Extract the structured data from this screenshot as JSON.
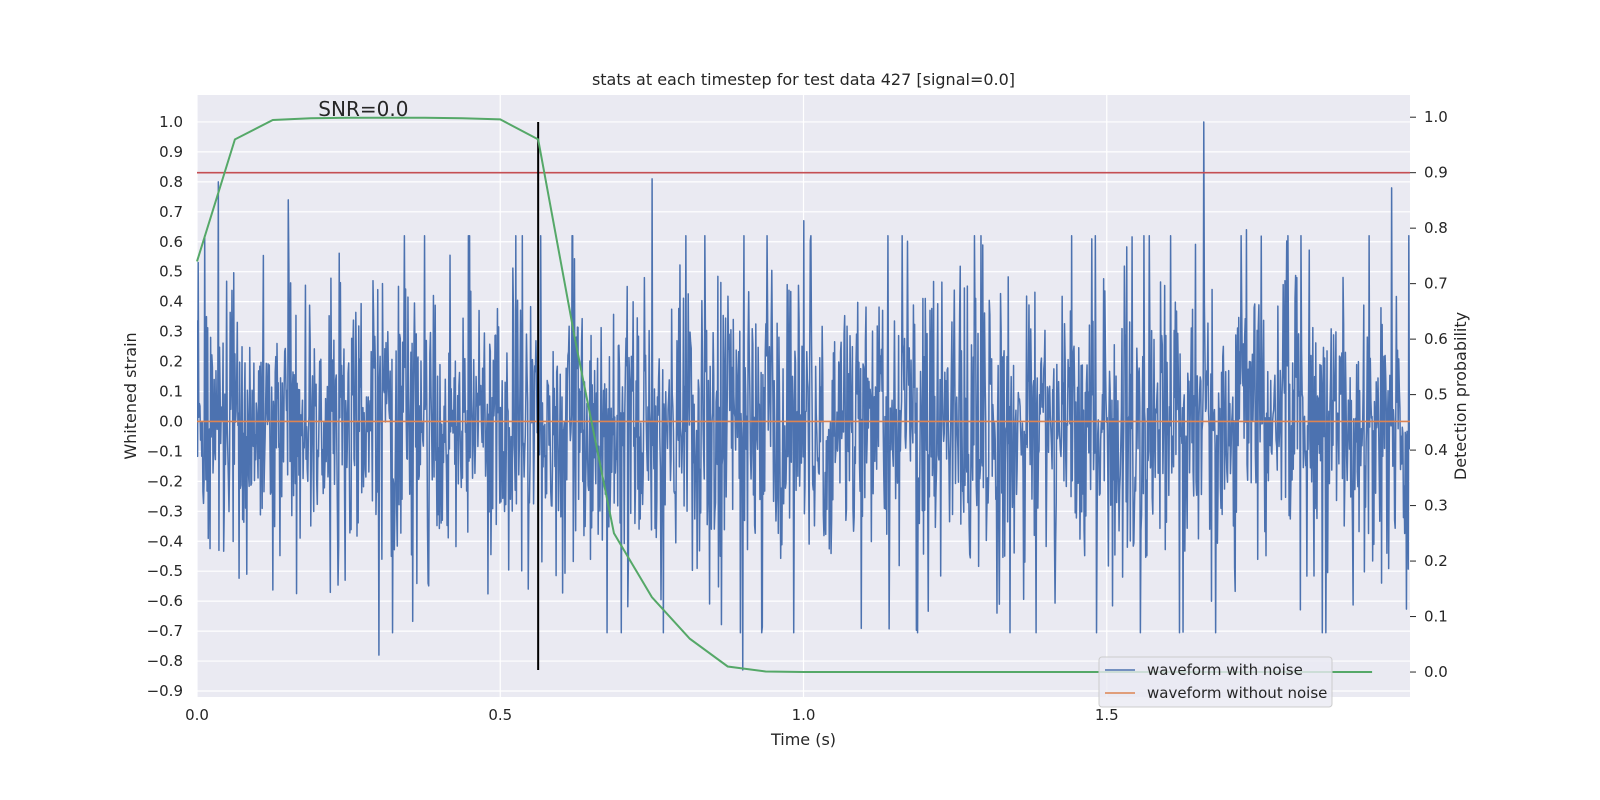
{
  "chart_data": {
    "type": "line",
    "title": "stats at each timestep for test data 427 [signal=0.0]",
    "xlabel": "Time (s)",
    "ylabel": "Whitened strain",
    "y2label": "Detection probability",
    "xlim": [
      0.0,
      2.0
    ],
    "ylim": [
      -0.92,
      1.09
    ],
    "y2lim": [
      -0.045,
      1.04
    ],
    "xticks": [
      0.0,
      0.5,
      1.0,
      1.5
    ],
    "xtick_labels": [
      "0.0",
      "0.5",
      "1.0",
      "1.5"
    ],
    "yticks": [
      1.0,
      0.9,
      0.8,
      0.7,
      0.6,
      0.5,
      0.4,
      0.3,
      0.2,
      0.1,
      0.0,
      -0.1,
      -0.2,
      -0.3,
      -0.4,
      -0.5,
      -0.6,
      -0.7,
      -0.8,
      -0.9
    ],
    "ytick_labels": [
      "1.0",
      "0.9",
      "0.8",
      "0.7",
      "0.6",
      "0.5",
      "0.4",
      "0.3",
      "0.2",
      "0.1",
      "0.0",
      "−0.1",
      "−0.2",
      "−0.3",
      "−0.4",
      "−0.5",
      "−0.6",
      "−0.7",
      "−0.8",
      "−0.9"
    ],
    "y2ticks": [
      1.0,
      0.9,
      0.8,
      0.7,
      0.6,
      0.5,
      0.4,
      0.3,
      0.2,
      0.1,
      0.0
    ],
    "y2tick_labels": [
      "1.0",
      "0.9",
      "0.8",
      "0.7",
      "0.6",
      "0.5",
      "0.4",
      "0.3",
      "0.2",
      "0.1",
      "0.0"
    ],
    "annotation": "SNR=0.0",
    "annotation_at": [
      0.2,
      1.02
    ],
    "grid": true,
    "legend_position": "lower-right",
    "series": [
      {
        "name": "waveform with noise",
        "color": "#4c72b0",
        "kind": "noise",
        "x_range": [
          0.0,
          2.0
        ],
        "num_samples": 2048,
        "min": -0.83,
        "max": 1.0,
        "std": 0.2,
        "peaks": [
          [
            0.035,
            0.8
          ],
          [
            0.15,
            0.74
          ],
          [
            0.29,
            0.47
          ],
          [
            0.3,
            -0.78
          ],
          [
            0.75,
            0.81
          ],
          [
            0.9,
            -0.83
          ],
          [
            1.0,
            0.67
          ],
          [
            1.66,
            1.0
          ],
          [
            1.73,
            0.64
          ],
          [
            1.97,
            0.78
          ]
        ]
      },
      {
        "name": "waveform without noise",
        "color": "#dd8452",
        "kind": "constant",
        "values": [
          0.0
        ]
      },
      {
        "name": "detection probability",
        "color": "#55a868",
        "axis": "right",
        "x": [
          0.0,
          0.0625,
          0.125,
          0.1875,
          0.25,
          0.3125,
          0.375,
          0.4375,
          0.5,
          0.5625,
          0.625,
          0.6875,
          0.75,
          0.8125,
          0.875,
          0.9375,
          1.0,
          1.0625,
          1.125,
          1.1875,
          1.25,
          1.3125,
          1.375,
          1.4375,
          1.5,
          1.5625,
          1.625,
          1.6875,
          1.75,
          1.8125,
          1.875,
          1.9375
        ],
        "values": [
          0.74,
          0.96,
          0.995,
          0.998,
          0.999,
          0.999,
          0.999,
          0.998,
          0.996,
          0.96,
          0.59,
          0.25,
          0.135,
          0.06,
          0.01,
          0.001,
          0.0,
          0.0,
          0.0,
          0.0,
          0.0,
          0.0,
          0.0,
          0.0,
          0.0,
          0.0,
          0.0,
          0.0,
          0.0,
          0.0,
          0.0,
          0.0
        ]
      }
    ],
    "reference_lines": [
      {
        "name": "detection threshold",
        "color": "#c44e52",
        "axis": "right",
        "orientation": "horizontal",
        "value": 0.9
      },
      {
        "name": "current timestep",
        "color": "#000000",
        "orientation": "vertical",
        "value": 0.5625,
        "y_range": [
          -0.83,
          1.0
        ]
      }
    ]
  }
}
